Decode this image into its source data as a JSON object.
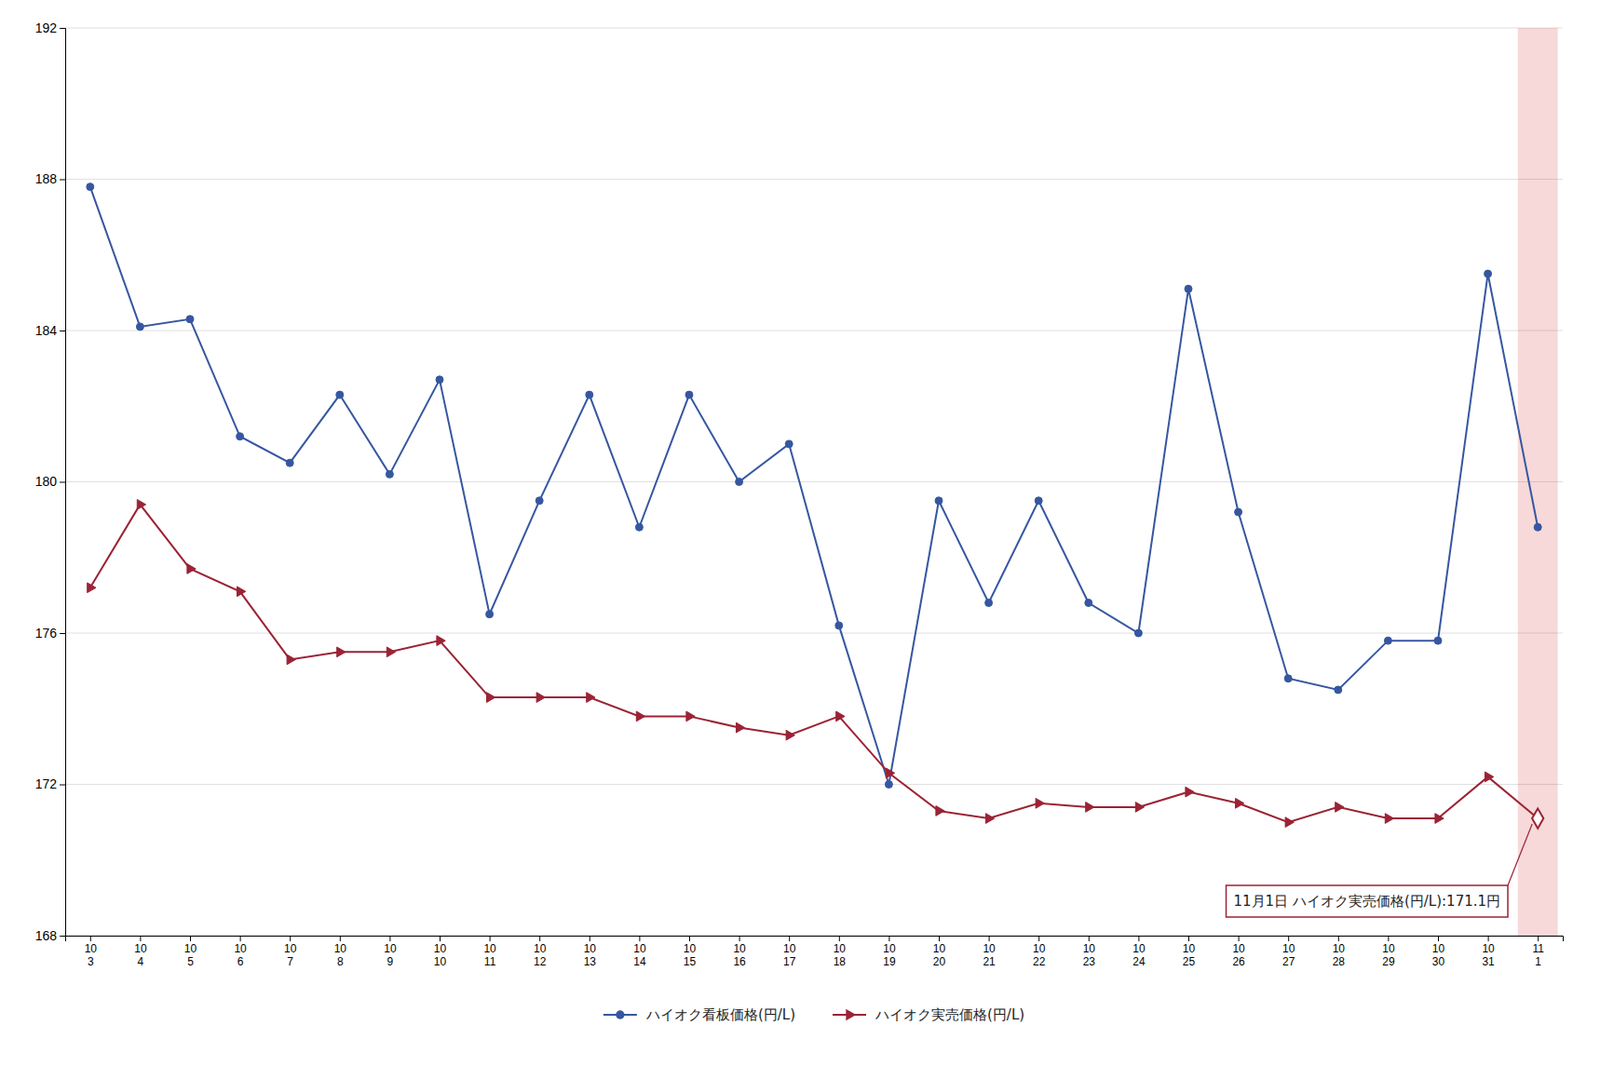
{
  "chart_data": {
    "type": "line",
    "categories": [
      "10\n3",
      "10\n4",
      "10\n5",
      "10\n6",
      "10\n7",
      "10\n8",
      "10\n9",
      "10\n10",
      "10\n11",
      "10\n12",
      "10\n13",
      "10\n14",
      "10\n15",
      "10\n16",
      "10\n17",
      "10\n18",
      "10\n19",
      "10\n20",
      "10\n21",
      "10\n22",
      "10\n23",
      "10\n24",
      "10\n25",
      "10\n26",
      "10\n27",
      "10\n28",
      "10\n29",
      "10\n30",
      "10\n31",
      "11\n1"
    ],
    "series": [
      {
        "name": "ハイオク看板価格(円/L)",
        "color": "#3657a0",
        "marker": "circle",
        "values": [
          187.8,
          184.1,
          184.3,
          181.2,
          180.5,
          182.3,
          180.2,
          182.7,
          176.5,
          179.5,
          182.3,
          178.8,
          182.3,
          180.0,
          181.0,
          176.2,
          172.0,
          179.5,
          176.8,
          179.5,
          176.8,
          176.0,
          185.1,
          179.2,
          174.8,
          174.5,
          175.8,
          175.8,
          185.5,
          178.8
        ]
      },
      {
        "name": "ハイオク実売価格(円/L)",
        "color": "#9b2335",
        "marker": "triangle-right",
        "values": [
          177.2,
          179.4,
          177.7,
          177.1,
          175.3,
          175.5,
          175.5,
          175.8,
          174.3,
          174.3,
          174.3,
          173.8,
          173.8,
          173.5,
          173.3,
          173.8,
          172.3,
          171.3,
          171.1,
          171.5,
          171.4,
          171.4,
          171.8,
          171.5,
          171.0,
          171.4,
          171.1,
          171.1,
          172.2,
          171.1
        ]
      }
    ],
    "ylim": [
      168,
      192
    ],
    "yticks": [
      168,
      172,
      176,
      180,
      184,
      188,
      192
    ],
    "grid": true,
    "legend": "bottom",
    "annotations": [
      {
        "text": "11月1日 ハイオク実売価格(円/L):171.1円",
        "x": "11\n1",
        "y": 171.1
      }
    ]
  }
}
